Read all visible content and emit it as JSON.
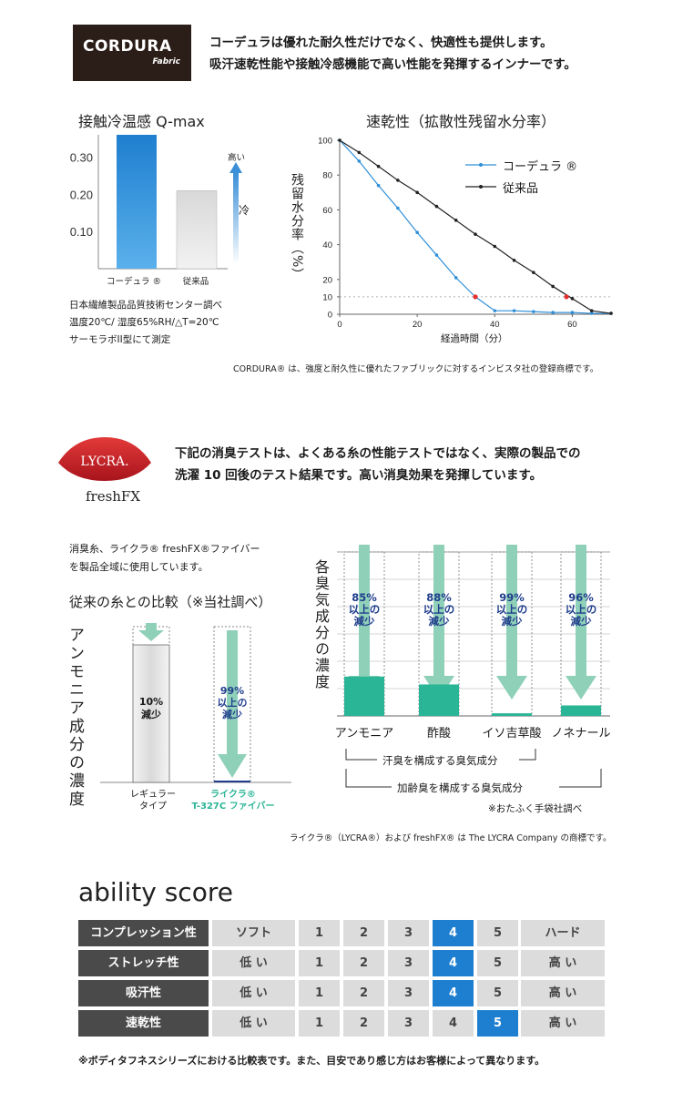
{
  "cordura": {
    "logo_word": "CORDURA",
    "logo_sub": "Fabric",
    "intro_line1": "コーデュラは優れた耐久性だけでなく、快適性も提供します。",
    "intro_line2": "吸汗速乾性能や接触冷感機能で高い性能を発揮するインナーです。"
  },
  "qmax": {
    "title": "接触冷温感 Q-max",
    "y_ticks": [
      "0.30",
      "0.20",
      "0.10"
    ],
    "categories": [
      "コーデュラ ®",
      "従来品"
    ],
    "values": [
      0.36,
      0.21
    ],
    "arrow_top_label": "高い",
    "arrow_side_label": "冷",
    "source_lines": [
      "日本繊維製品品質技術センター調べ",
      "温度20℃/ 湿度65%RH/△T=20℃",
      "サーモラボII型にて測定"
    ]
  },
  "drying": {
    "title": "速乾性（拡散性残留水分率）",
    "ylabel": "残留水分率（%）",
    "xlabel": "経過時間（分）",
    "y_ticks": [
      "100",
      "80",
      "60",
      "40",
      "20",
      "10",
      "0"
    ],
    "x_ticks": [
      "0",
      "20",
      "40",
      "60"
    ],
    "legend": [
      "コーデュラ ®",
      "従来品"
    ]
  },
  "chart_data": [
    {
      "type": "bar",
      "title": "接触冷温感 Q-max",
      "categories": [
        "コーデュラ ®",
        "従来品"
      ],
      "values": [
        0.36,
        0.21
      ],
      "ylim": [
        0,
        0.36
      ]
    },
    {
      "type": "line",
      "title": "速乾性（拡散性残留水分率）",
      "xlabel": "経過時間（分）",
      "ylabel": "残留水分率（%）",
      "xlim": [
        0,
        70
      ],
      "ylim": [
        0,
        100
      ],
      "series": [
        {
          "name": "コーデュラ ®",
          "x": [
            0,
            5,
            10,
            15,
            20,
            25,
            30,
            35,
            40,
            45,
            50,
            55,
            60,
            65,
            70
          ],
          "y": [
            100,
            88,
            74,
            61,
            47,
            34,
            21,
            10,
            2,
            2,
            1.5,
            1,
            1,
            0.5,
            0.5
          ]
        },
        {
          "name": "従来品",
          "x": [
            0,
            5,
            10,
            15,
            20,
            25,
            30,
            35,
            40,
            45,
            50,
            55,
            60,
            65,
            70
          ],
          "y": [
            100,
            93,
            85,
            77,
            70,
            62,
            54,
            46,
            39,
            31,
            24,
            16,
            9,
            2,
            0.5
          ]
        }
      ]
    },
    {
      "type": "bar",
      "title": "従来の糸との比較（※当社調べ）",
      "ylabel": "アンモニア成分の濃度",
      "categories": [
        "レギュラータイプ",
        "ライクラ® T-327C ファイバー"
      ],
      "values": [
        90,
        1
      ]
    },
    {
      "type": "bar",
      "ylabel": "各臭気成分の濃度",
      "categories": [
        "アンモニア",
        "酢酸",
        "イソ吉草酸",
        "ノネナール"
      ],
      "values": [
        15,
        12,
        1,
        4
      ]
    }
  ],
  "lycra": {
    "logo_word": "LYCRA.",
    "logo_sub": "freshFX",
    "intro_line1": "下記の消臭テストは、よくある糸の性能テストではなく、実際の製品での",
    "intro_line2": "洗濯 10 回後のテスト結果です。高い消臭効果を発揮しています。",
    "desc_line1": "消臭糸、ライクラ® freshFX®ファイバー",
    "desc_line2": "を製品全域に使用しています。",
    "compare_title": "従来の糸との比較（※当社調べ）",
    "compare_ylabel": "アンモニア成分の濃度",
    "reg_value": "10%\n減少",
    "reg_value_l1": "10%",
    "reg_value_l2": "減少",
    "lycra_value_l1": "99%",
    "lycra_value_l2": "以上の",
    "lycra_value_l3": "減少",
    "reg_label_l1": "レギュラー",
    "reg_label_l2": "タイプ",
    "lycra_label_l1": "ライクラ®",
    "lycra_label_l2": "T-327C ファイバー",
    "odor_ylabel": "各臭気成分の濃度",
    "odor_items": [
      {
        "name": "アンモニア",
        "pct": "85%",
        "l2": "以上の",
        "l3": "減少"
      },
      {
        "name": "酢酸",
        "pct": "88%",
        "l2": "以上の",
        "l3": "減少"
      },
      {
        "name": "イソ吉草酸",
        "pct": "99%",
        "l2": "以上の",
        "l3": "減少"
      },
      {
        "name": "ノネナール",
        "pct": "96%",
        "l2": "以上の",
        "l3": "減少"
      }
    ],
    "bracket1": "汗臭を構成する臭気成分",
    "bracket2": "加齢臭を構成する臭気成分",
    "odor_source": "※おたふく手袋社調べ"
  },
  "trademarks": {
    "cordura": "CORDURA® は、強度と耐久性に優れたファブリックに対するインビスタ社の登録商標です。",
    "lycra": "ライクラ®（LYCRA®）および freshFX® は The LYCRA Company の商標です。"
  },
  "ability": {
    "title": "ability score",
    "scale": [
      "1",
      "2",
      "3",
      "4",
      "5"
    ],
    "rows": [
      {
        "label": "コンプレッション性",
        "low": "ソフト",
        "high": "ハード",
        "score": 4
      },
      {
        "label": "ストレッチ性",
        "low": "低 い",
        "high": "高 い",
        "score": 4
      },
      {
        "label": "吸汗性",
        "low": "低 い",
        "high": "高 い",
        "score": 4
      },
      {
        "label": "速乾性",
        "low": "低 い",
        "high": "高 い",
        "score": 5
      }
    ],
    "footer": "※ボディタフネスシリーズにおける比較表です。また、目安であり感じ方はお客様によって異なります。"
  },
  "colors": {
    "cordura_blue": "#2f8fd8",
    "conventional_gray": "#e3e3e3",
    "teal": "#2ab596",
    "arrow_green": "#8fd0b8",
    "navy_text": "#1f3d8c",
    "score_highlight": "#1e7fd0",
    "score_label_bg": "#4a4a4a"
  }
}
